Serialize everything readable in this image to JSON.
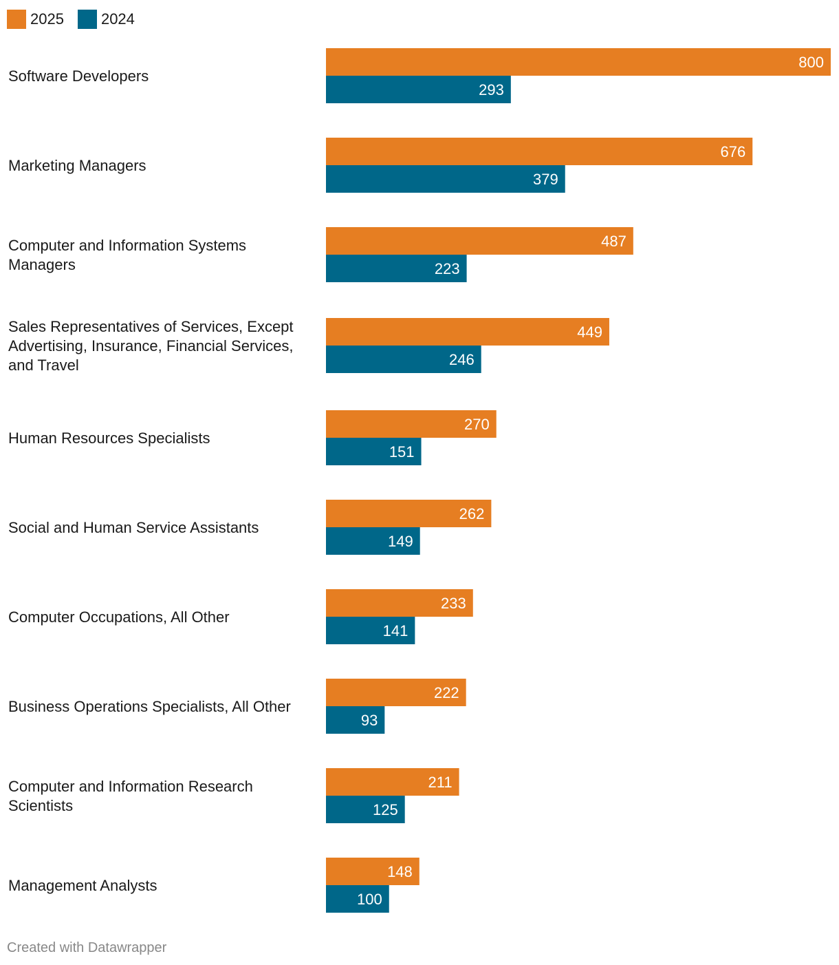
{
  "colors": {
    "2025": "#e67e22",
    "2024": "#006789"
  },
  "legend": [
    {
      "name": "2025",
      "color": "#e67e22"
    },
    {
      "name": "2024",
      "color": "#006789"
    }
  ],
  "chart_data": {
    "type": "bar",
    "orientation": "horizontal",
    "title": "",
    "xlabel": "",
    "ylabel": "",
    "xlim": [
      0,
      800
    ],
    "grid": false,
    "legend_position": "top-left",
    "categories": [
      [
        "Software Developers"
      ],
      [
        "Marketing Managers"
      ],
      [
        "Computer and Information Systems",
        "Managers"
      ],
      [
        "Sales Representatives of Services, Except",
        "Advertising, Insurance, Financial Services,",
        "and Travel"
      ],
      [
        "Human Resources Specialists"
      ],
      [
        "Social and Human Service Assistants"
      ],
      [
        "Computer Occupations, All Other"
      ],
      [
        "Business Operations Specialists, All Other"
      ],
      [
        "Computer and Information Research",
        "Scientists"
      ],
      [
        "Management Analysts"
      ]
    ],
    "series": [
      {
        "name": "2025",
        "color": "#e67e22",
        "values": [
          800,
          676,
          487,
          449,
          270,
          262,
          233,
          222,
          211,
          148
        ]
      },
      {
        "name": "2024",
        "color": "#006789",
        "values": [
          293,
          379,
          223,
          246,
          151,
          149,
          141,
          93,
          125,
          100
        ]
      }
    ]
  },
  "footer": {
    "credit": "Created with Datawrapper"
  }
}
